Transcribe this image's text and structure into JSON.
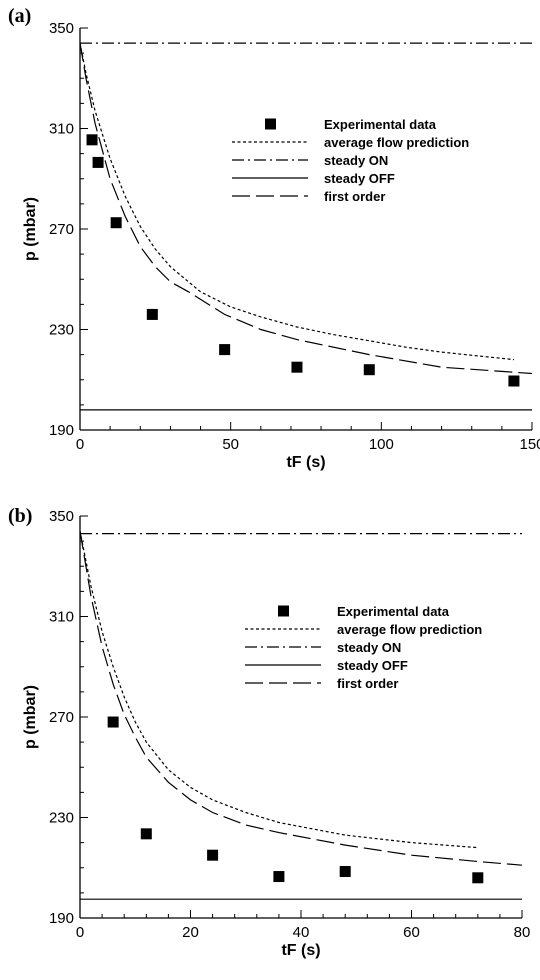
{
  "chart_data": [
    {
      "type": "scatter",
      "panel_label": "(a)",
      "xlabel": "tF (s)",
      "ylabel": "p (mbar)",
      "xlim": [
        0,
        150
      ],
      "ylim": [
        190,
        350
      ],
      "x_ticks": [
        0,
        50,
        100,
        150
      ],
      "y_ticks": [
        190,
        230,
        270,
        310,
        350
      ],
      "legend": {
        "placement": "upper-right",
        "entries": [
          "Experimental data",
          "average flow prediction",
          "steady ON",
          "steady OFF",
          "first order"
        ]
      },
      "series": [
        {
          "name": "Experimental data",
          "style": "square-marker",
          "x": [
            4,
            6,
            12,
            24,
            48,
            72,
            96,
            144
          ],
          "y": [
            305.5,
            296.5,
            272.5,
            236,
            222,
            215,
            214,
            209.5
          ]
        },
        {
          "name": "average flow prediction",
          "style": "dotted",
          "x": [
            0,
            2,
            5,
            10,
            15,
            20,
            25,
            30,
            40,
            50,
            60,
            72,
            84,
            96,
            108,
            120,
            132,
            144
          ],
          "y": [
            344,
            332,
            317,
            298,
            283,
            271,
            262,
            255,
            245,
            239,
            235,
            231,
            228,
            225.5,
            223,
            221,
            219.5,
            218
          ]
        },
        {
          "name": "steady ON",
          "style": "dash-dot",
          "x": [
            0,
            150
          ],
          "y": [
            344,
            344
          ]
        },
        {
          "name": "steady OFF",
          "style": "solid",
          "x": [
            0,
            150
          ],
          "y": [
            198,
            198
          ]
        },
        {
          "name": "first order",
          "style": "long-dash",
          "x": [
            0,
            2,
            5,
            10,
            15,
            20,
            25,
            30,
            36,
            48,
            60,
            72,
            96,
            120,
            150
          ],
          "y": [
            344,
            330,
            312,
            290,
            275,
            263,
            255,
            249,
            245,
            236,
            230,
            226,
            220,
            215,
            212.5
          ]
        }
      ]
    },
    {
      "type": "scatter",
      "panel_label": "(b)",
      "xlabel": "tF (s)",
      "ylabel": "p (mbar)",
      "xlim": [
        0,
        80
      ],
      "ylim": [
        190,
        350
      ],
      "x_ticks": [
        0,
        20,
        40,
        60,
        80
      ],
      "y_ticks": [
        190,
        230,
        270,
        310,
        350
      ],
      "legend": {
        "placement": "right",
        "entries": [
          "Experimental data",
          "average flow prediction",
          "steady ON",
          "steady OFF",
          "first order"
        ]
      },
      "series": [
        {
          "name": "Experimental data",
          "style": "square-marker",
          "x": [
            6,
            12,
            24,
            36,
            48,
            72
          ],
          "y": [
            268,
            223.5,
            215,
            206.5,
            208.5,
            206
          ]
        },
        {
          "name": "average flow prediction",
          "style": "dotted",
          "x": [
            0,
            1,
            2,
            4,
            6,
            8,
            10,
            12,
            16,
            20,
            24,
            30,
            36,
            48,
            60,
            72
          ],
          "y": [
            344,
            333,
            322,
            304,
            290,
            278,
            268,
            260,
            249,
            242,
            237,
            232,
            228,
            223,
            220,
            218
          ]
        },
        {
          "name": "steady ON",
          "style": "dash-dot",
          "x": [
            0,
            80
          ],
          "y": [
            343,
            343
          ]
        },
        {
          "name": "steady OFF",
          "style": "solid",
          "x": [
            0,
            80
          ],
          "y": [
            197.5,
            197.5
          ]
        },
        {
          "name": "first order",
          "style": "long-dash",
          "x": [
            0,
            1,
            2,
            4,
            6,
            8,
            10,
            12,
            16,
            20,
            24,
            30,
            36,
            48,
            60,
            72,
            80
          ],
          "y": [
            344,
            331,
            318,
            298,
            283,
            271,
            262,
            254,
            244,
            237,
            232,
            227,
            224,
            219,
            215,
            212.5,
            211
          ]
        }
      ]
    }
  ]
}
